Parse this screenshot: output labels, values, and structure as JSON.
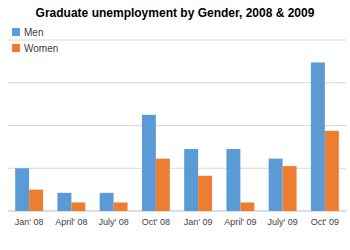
{
  "chart_data": {
    "type": "bar",
    "title": "Graduate unemployment by Gender, 2008 & 2009",
    "categories": [
      "Jan' 08",
      "April' 08",
      "July' 08",
      "Oct' 08",
      "Jan' 09",
      "April' 09",
      "July' 09",
      "Oct' 09"
    ],
    "series": [
      {
        "name": "Men",
        "color": "#5b9bd5",
        "values": [
          2.0,
          0.85,
          0.85,
          4.5,
          2.9,
          2.9,
          2.45,
          6.95
        ]
      },
      {
        "name": "Women",
        "color": "#ed7d31",
        "values": [
          1.0,
          0.4,
          0.4,
          2.45,
          1.65,
          0.4,
          2.1,
          3.75
        ]
      }
    ],
    "ylim": [
      0,
      8
    ],
    "yticks": [
      0,
      2,
      4,
      6,
      8
    ],
    "grid": true,
    "legend": "top-left",
    "tick_labels": "x"
  }
}
